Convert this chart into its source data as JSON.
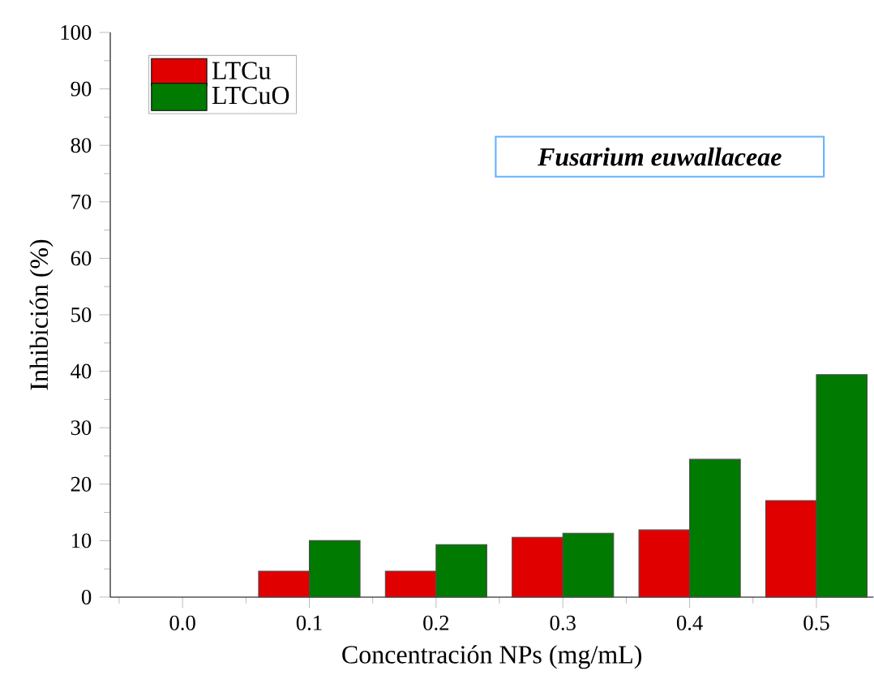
{
  "chart_data": {
    "type": "bar",
    "xlabel": "Concentración NPs (mg/mL)",
    "ylabel": "Inhibición (%)",
    "categories": [
      "0.0",
      "0.1",
      "0.2",
      "0.3",
      "0.4",
      "0.5"
    ],
    "series": [
      {
        "name": "LTCu",
        "color": "#e00000",
        "values": [
          null,
          4.6,
          4.6,
          10.6,
          11.9,
          17.1
        ]
      },
      {
        "name": "LTCuO",
        "color": "#007a00",
        "values": [
          null,
          10,
          9.3,
          11.3,
          24.4,
          39.4
        ]
      }
    ],
    "ylim": [
      0,
      100
    ],
    "yticks": [
      0,
      10,
      20,
      30,
      40,
      50,
      60,
      70,
      80,
      90,
      100
    ],
    "legend": "top left",
    "grid": false,
    "annotations": [
      "Fusarium euwallaceae"
    ]
  }
}
